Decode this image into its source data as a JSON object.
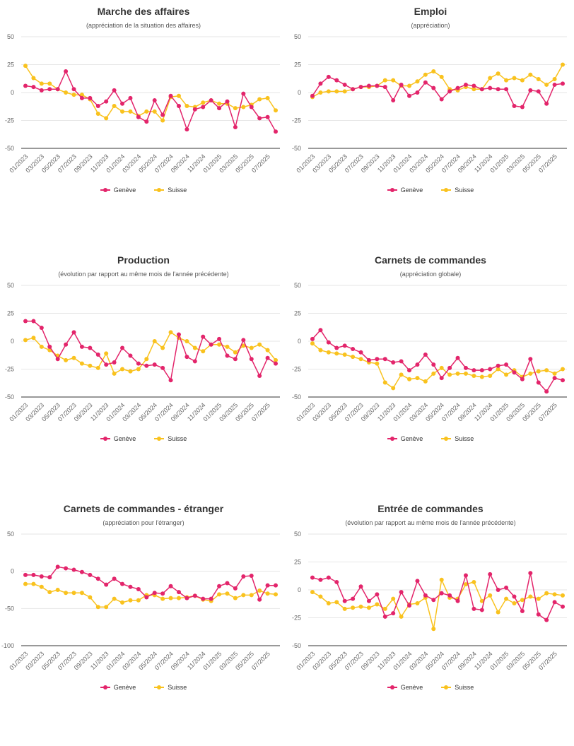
{
  "colors": {
    "geneve": "#E3256B",
    "suisse": "#F9C21E",
    "grid": "#e6e6e6",
    "axis": "#333333"
  },
  "chart_data": [
    {
      "type": "line",
      "title": "Marche des affaires",
      "subtitle": "(appréciation de la situation des affaires)",
      "ylim": [
        -50,
        50
      ],
      "yticks": [
        50,
        25,
        0,
        -25,
        -50
      ],
      "xtick_labels": [
        "01/2023",
        "03/2023",
        "05/2023",
        "07/2023",
        "09/2023",
        "11/2023",
        "01/2024",
        "03/2024",
        "05/2024",
        "07/2024",
        "09/2024",
        "11/2024",
        "01/2025",
        "03/2025",
        "05/2025",
        "07/2025"
      ],
      "x": [
        "01/2023",
        "02/2023",
        "03/2023",
        "04/2023",
        "05/2023",
        "06/2023",
        "07/2023",
        "08/2023",
        "09/2023",
        "10/2023",
        "11/2023",
        "12/2023",
        "01/2024",
        "02/2024",
        "03/2024",
        "04/2024",
        "05/2024",
        "06/2024",
        "07/2024",
        "08/2024",
        "09/2024",
        "10/2024",
        "11/2024",
        "12/2024",
        "01/2025",
        "02/2025",
        "03/2025",
        "04/2025",
        "05/2025",
        "06/2025",
        "07/2025",
        "08/2025"
      ],
      "series": [
        {
          "name": "Genève",
          "values": [
            6,
            5,
            2,
            3,
            3,
            19,
            3,
            -5,
            -5,
            -12,
            -8,
            2,
            -10,
            -5,
            -22,
            -26,
            -7,
            -20,
            -3,
            -12,
            -33,
            -15,
            -13,
            -7,
            -14,
            -8,
            -31,
            -1,
            -13,
            -23,
            -22,
            -35
          ]
        },
        {
          "name": "Suisse",
          "values": [
            24,
            13,
            8,
            8,
            3,
            0,
            -2,
            -2,
            -6,
            -19,
            -23,
            -12,
            -17,
            -17,
            -21,
            -17,
            -17,
            -25,
            -4,
            -3,
            -12,
            -13,
            -9,
            -7,
            -10,
            -10,
            -14,
            -13,
            -11,
            -6,
            -5,
            -16
          ]
        }
      ]
    },
    {
      "type": "line",
      "title": "Emploi",
      "subtitle": "(appréciation)",
      "ylim": [
        -50,
        50
      ],
      "yticks": [
        50,
        25,
        0,
        -25,
        -50
      ],
      "xtick_labels": [
        "01/2023",
        "03/2023",
        "05/2023",
        "07/2023",
        "09/2023",
        "11/2023",
        "01/2024",
        "03/2024",
        "05/2024",
        "07/2024",
        "09/2024",
        "11/2024",
        "01/2025",
        "03/2025",
        "05/2025",
        "07/2025"
      ],
      "x": [
        "01/2023",
        "02/2023",
        "03/2023",
        "04/2023",
        "05/2023",
        "06/2023",
        "07/2023",
        "08/2023",
        "09/2023",
        "10/2023",
        "11/2023",
        "12/2023",
        "01/2024",
        "02/2024",
        "03/2024",
        "04/2024",
        "05/2024",
        "06/2024",
        "07/2024",
        "08/2024",
        "09/2024",
        "10/2024",
        "11/2024",
        "12/2024",
        "01/2025",
        "02/2025",
        "03/2025",
        "04/2025",
        "05/2025",
        "06/2025",
        "07/2025",
        "08/2025"
      ],
      "series": [
        {
          "name": "Genève",
          "values": [
            -3,
            8,
            14,
            11,
            7,
            3,
            5,
            6,
            6,
            5,
            -7,
            7,
            -3,
            0,
            9,
            4,
            -6,
            1,
            4,
            7,
            6,
            3,
            4,
            3,
            3,
            -12,
            -13,
            2,
            1,
            -10,
            7,
            8
          ]
        },
        {
          "name": "Suisse",
          "values": [
            -4,
            0,
            1,
            1,
            1,
            3,
            5,
            5,
            6,
            11,
            11,
            6,
            6,
            10,
            16,
            19,
            14,
            3,
            2,
            5,
            3,
            3,
            13,
            17,
            11,
            13,
            11,
            16,
            12,
            7,
            12,
            25
          ]
        }
      ]
    },
    {
      "type": "line",
      "title": "Production",
      "subtitle": "(évolution par rapport au même mois de l'année précédente)",
      "ylim": [
        -50,
        50
      ],
      "yticks": [
        50,
        25,
        0,
        -25,
        -50
      ],
      "xtick_labels": [
        "01/2023",
        "03/2023",
        "05/2023",
        "07/2023",
        "09/2023",
        "11/2023",
        "01/2024",
        "03/2024",
        "05/2024",
        "07/2024",
        "09/2024",
        "11/2024",
        "01/2025",
        "03/2025",
        "05/2025",
        "07/2025"
      ],
      "x": [
        "01/2023",
        "02/2023",
        "03/2023",
        "04/2023",
        "05/2023",
        "06/2023",
        "07/2023",
        "08/2023",
        "09/2023",
        "10/2023",
        "11/2023",
        "12/2023",
        "01/2024",
        "02/2024",
        "03/2024",
        "04/2024",
        "05/2024",
        "06/2024",
        "07/2024",
        "08/2024",
        "09/2024",
        "10/2024",
        "11/2024",
        "12/2024",
        "01/2025",
        "02/2025",
        "03/2025",
        "04/2025",
        "05/2025",
        "06/2025",
        "07/2025",
        "08/2025"
      ],
      "series": [
        {
          "name": "Genève",
          "values": [
            18,
            18,
            12,
            -5,
            -16,
            -3,
            8,
            -5,
            -6,
            -12,
            -21,
            -19,
            -6,
            -13,
            -20,
            -22,
            -21,
            -24,
            -35,
            6,
            -14,
            -18,
            4,
            -3,
            2,
            -13,
            -16,
            1,
            -16,
            -31,
            -15,
            -20
          ]
        },
        {
          "name": "Suisse",
          "values": [
            1,
            3,
            -5,
            -8,
            -13,
            -17,
            -15,
            -20,
            -22,
            -24,
            -11,
            -29,
            -25,
            -27,
            -25,
            -16,
            0,
            -6,
            8,
            3,
            0,
            -6,
            -9,
            -3,
            -3,
            -5,
            -10,
            -4,
            -6,
            -3,
            -8,
            -17
          ]
        }
      ]
    },
    {
      "type": "line",
      "title": "Carnets de commandes",
      "subtitle": "(appréciation globale)",
      "ylim": [
        -50,
        50
      ],
      "yticks": [
        50,
        25,
        0,
        -25,
        -50
      ],
      "xtick_labels": [
        "01/2023",
        "03/2023",
        "05/2023",
        "07/2023",
        "09/2023",
        "11/2023",
        "01/2024",
        "03/2024",
        "05/2024",
        "07/2024",
        "09/2024",
        "11/2024",
        "01/2025",
        "03/2025",
        "05/2025",
        "07/2025"
      ],
      "x": [
        "01/2023",
        "02/2023",
        "03/2023",
        "04/2023",
        "05/2023",
        "06/2023",
        "07/2023",
        "08/2023",
        "09/2023",
        "10/2023",
        "11/2023",
        "12/2023",
        "01/2024",
        "02/2024",
        "03/2024",
        "04/2024",
        "05/2024",
        "06/2024",
        "07/2024",
        "08/2024",
        "09/2024",
        "10/2024",
        "11/2024",
        "12/2024",
        "01/2025",
        "02/2025",
        "03/2025",
        "04/2025",
        "05/2025",
        "06/2025",
        "07/2025",
        "08/2025"
      ],
      "series": [
        {
          "name": "Genève",
          "values": [
            2,
            10,
            -1,
            -6,
            -4,
            -7,
            -10,
            -17,
            -16,
            -16,
            -19,
            -18,
            -26,
            -21,
            -12,
            -21,
            -33,
            -24,
            -15,
            -24,
            -26,
            -26,
            -25,
            -22,
            -21,
            -28,
            -34,
            -16,
            -37,
            -45,
            -33,
            -35
          ]
        },
        {
          "name": "Suisse",
          "values": [
            -2,
            -8,
            -10,
            -11,
            -12,
            -14,
            -16,
            -19,
            -20,
            -37,
            -42,
            -30,
            -34,
            -33,
            -36,
            -29,
            -24,
            -30,
            -29,
            -29,
            -31,
            -32,
            -31,
            -25,
            -30,
            -26,
            -32,
            -29,
            -27,
            -26,
            -29,
            -25
          ]
        }
      ]
    },
    {
      "type": "line",
      "title": "Carnets de commandes - étranger",
      "subtitle": "(appréciation pour l'étranger)",
      "ylim": [
        -100,
        50
      ],
      "yticks": [
        50,
        0,
        -50,
        -100
      ],
      "xtick_labels": [
        "01/2023",
        "03/2023",
        "05/2023",
        "07/2023",
        "09/2023",
        "11/2023",
        "01/2024",
        "03/2024",
        "05/2024",
        "07/2024",
        "09/2024",
        "11/2024",
        "01/2025",
        "03/2025",
        "05/2025",
        "07/2025"
      ],
      "x": [
        "01/2023",
        "02/2023",
        "03/2023",
        "04/2023",
        "05/2023",
        "06/2023",
        "07/2023",
        "08/2023",
        "09/2023",
        "10/2023",
        "11/2023",
        "12/2023",
        "01/2024",
        "02/2024",
        "03/2024",
        "04/2024",
        "05/2024",
        "06/2024",
        "07/2024",
        "08/2024",
        "09/2024",
        "10/2024",
        "11/2024",
        "12/2024",
        "01/2025",
        "02/2025",
        "03/2025",
        "04/2025",
        "05/2025",
        "06/2025",
        "07/2025",
        "08/2025"
      ],
      "series": [
        {
          "name": "Genève",
          "values": [
            -5,
            -5,
            -7,
            -8,
            6,
            4,
            2,
            -1,
            -5,
            -10,
            -18,
            -10,
            -17,
            -21,
            -24,
            -35,
            -29,
            -30,
            -20,
            -28,
            -36,
            -33,
            -37,
            -37,
            -20,
            -16,
            -23,
            -7,
            -6,
            -38,
            -19,
            -19
          ]
        },
        {
          "name": "Suisse",
          "values": [
            -17,
            -17,
            -21,
            -28,
            -25,
            -29,
            -29,
            -29,
            -35,
            -48,
            -48,
            -37,
            -42,
            -39,
            -39,
            -32,
            -32,
            -37,
            -36,
            -36,
            -35,
            -33,
            -38,
            -40,
            -31,
            -30,
            -36,
            -32,
            -32,
            -26,
            -30,
            -31
          ]
        }
      ]
    },
    {
      "type": "line",
      "title": "Entrée de commandes",
      "subtitle": "(évolution par rapport au même mois de l'année précédente)",
      "ylim": [
        -50,
        50
      ],
      "yticks": [
        50,
        25,
        0,
        -25,
        -50
      ],
      "xtick_labels": [
        "01/2023",
        "03/2023",
        "05/2023",
        "07/2023",
        "09/2023",
        "11/2023",
        "01/2024",
        "03/2024",
        "05/2024",
        "07/2024",
        "09/2024",
        "11/2024",
        "01/2025",
        "03/2025",
        "05/2025",
        "07/2025"
      ],
      "x": [
        "01/2023",
        "02/2023",
        "03/2023",
        "04/2023",
        "05/2023",
        "06/2023",
        "07/2023",
        "08/2023",
        "09/2023",
        "10/2023",
        "11/2023",
        "12/2023",
        "01/2024",
        "02/2024",
        "03/2024",
        "04/2024",
        "05/2024",
        "06/2024",
        "07/2024",
        "08/2024",
        "09/2024",
        "10/2024",
        "11/2024",
        "12/2024",
        "01/2025",
        "02/2025",
        "03/2025",
        "04/2025",
        "05/2025",
        "06/2025",
        "07/2025",
        "08/2025"
      ],
      "series": [
        {
          "name": "Genève",
          "values": [
            11,
            9,
            11,
            7,
            -10,
            -8,
            3,
            -10,
            -4,
            -24,
            -21,
            -2,
            -14,
            8,
            -5,
            -9,
            -3,
            -5,
            -10,
            13,
            -17,
            -18,
            14,
            0,
            2,
            -6,
            -19,
            15,
            -22,
            -27,
            -11,
            -15
          ]
        },
        {
          "name": "Suisse",
          "values": [
            -2,
            -6,
            -12,
            -11,
            -17,
            -16,
            -15,
            -16,
            -13,
            -17,
            -8,
            -24,
            -13,
            -12,
            -7,
            -35,
            9,
            -7,
            -8,
            5,
            7,
            -10,
            -5,
            -20,
            -8,
            -12,
            -9,
            -6,
            -8,
            -3,
            -4,
            -5
          ]
        }
      ]
    }
  ]
}
